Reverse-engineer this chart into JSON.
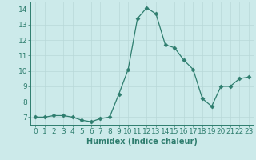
{
  "x": [
    0,
    1,
    2,
    3,
    4,
    5,
    6,
    7,
    8,
    9,
    10,
    11,
    12,
    13,
    14,
    15,
    16,
    17,
    18,
    19,
    20,
    21,
    22,
    23
  ],
  "y": [
    7.0,
    7.0,
    7.1,
    7.1,
    7.0,
    6.8,
    6.7,
    6.9,
    7.0,
    8.5,
    10.1,
    13.4,
    14.1,
    13.7,
    11.7,
    11.5,
    10.7,
    10.1,
    8.2,
    7.7,
    9.0,
    9.0,
    9.5,
    9.6
  ],
  "line_color": "#2e7d6e",
  "marker": "D",
  "marker_size": 2.5,
  "bg_color": "#cceaea",
  "grid_color": "#b8d8d8",
  "xlabel": "Humidex (Indice chaleur)",
  "xlim": [
    -0.5,
    23.5
  ],
  "ylim": [
    6.5,
    14.5
  ],
  "yticks": [
    7,
    8,
    9,
    10,
    11,
    12,
    13,
    14
  ],
  "xticks": [
    0,
    1,
    2,
    3,
    4,
    5,
    6,
    7,
    8,
    9,
    10,
    11,
    12,
    13,
    14,
    15,
    16,
    17,
    18,
    19,
    20,
    21,
    22,
    23
  ],
  "label_fontsize": 7,
  "tick_fontsize": 6.5
}
